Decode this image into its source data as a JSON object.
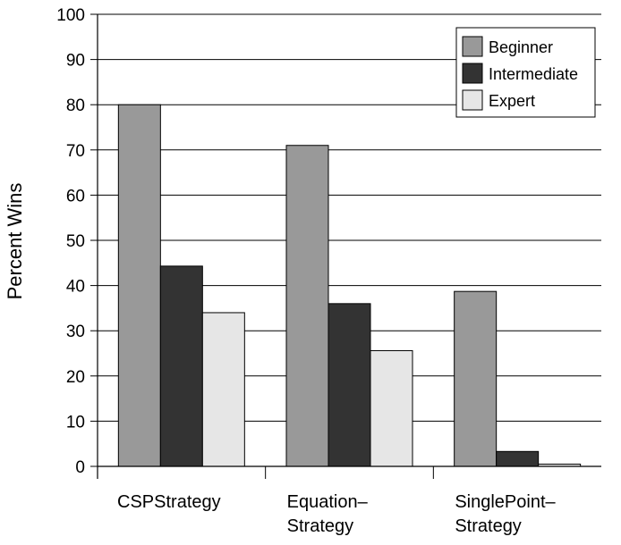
{
  "chart_data": {
    "type": "bar",
    "title": "",
    "xlabel": "",
    "ylabel": "Percent Wins",
    "ylim": [
      0,
      100
    ],
    "yticks": [
      0,
      10,
      20,
      30,
      40,
      50,
      60,
      70,
      80,
      90,
      100
    ],
    "grid": "horizontal",
    "legend_position": "top-right",
    "categories": [
      [
        "CSPStrategy"
      ],
      [
        "Equation–",
        "Strategy"
      ],
      [
        "SinglePoint–",
        "Strategy"
      ]
    ],
    "series": [
      {
        "name": "Beginner",
        "color": "#999999",
        "values": [
          80,
          71,
          38.7
        ]
      },
      {
        "name": "Intermediate",
        "color": "#333333",
        "values": [
          44.3,
          36,
          3.3
        ]
      },
      {
        "name": "Expert",
        "color": "#e6e6e6",
        "values": [
          34,
          25.6,
          0.5
        ]
      }
    ]
  }
}
